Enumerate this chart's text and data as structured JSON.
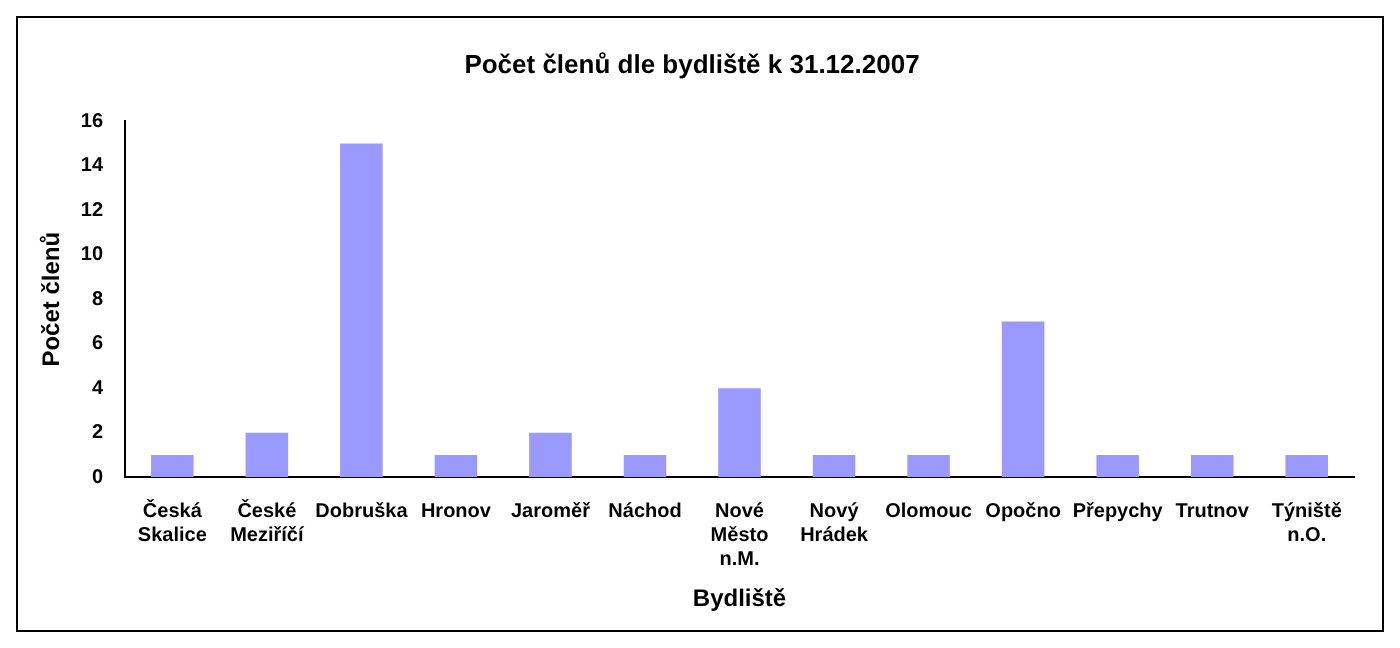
{
  "chart_data": {
    "type": "bar",
    "title": "Počet členů dle bydliště k 31.12.2007",
    "xlabel": "Bydliště",
    "ylabel": "Počet členů",
    "categories": [
      "Česká Skalice",
      "České Meziříčí",
      "Dobruška",
      "Hronov",
      "Jaroměř",
      "Náchod",
      "Nové Město n.M.",
      "Nový Hrádek",
      "Olomouc",
      "Opočno",
      "Přepychy",
      "Trutnov",
      "Týniště n.O."
    ],
    "values": [
      1,
      2,
      15,
      1,
      2,
      1,
      4,
      1,
      1,
      7,
      1,
      1,
      1
    ],
    "color": "#9999ff",
    "ylim": [
      0,
      16
    ],
    "yticks": [
      0,
      2,
      4,
      6,
      8,
      10,
      12,
      14,
      16
    ],
    "grid": false,
    "legend": false
  }
}
